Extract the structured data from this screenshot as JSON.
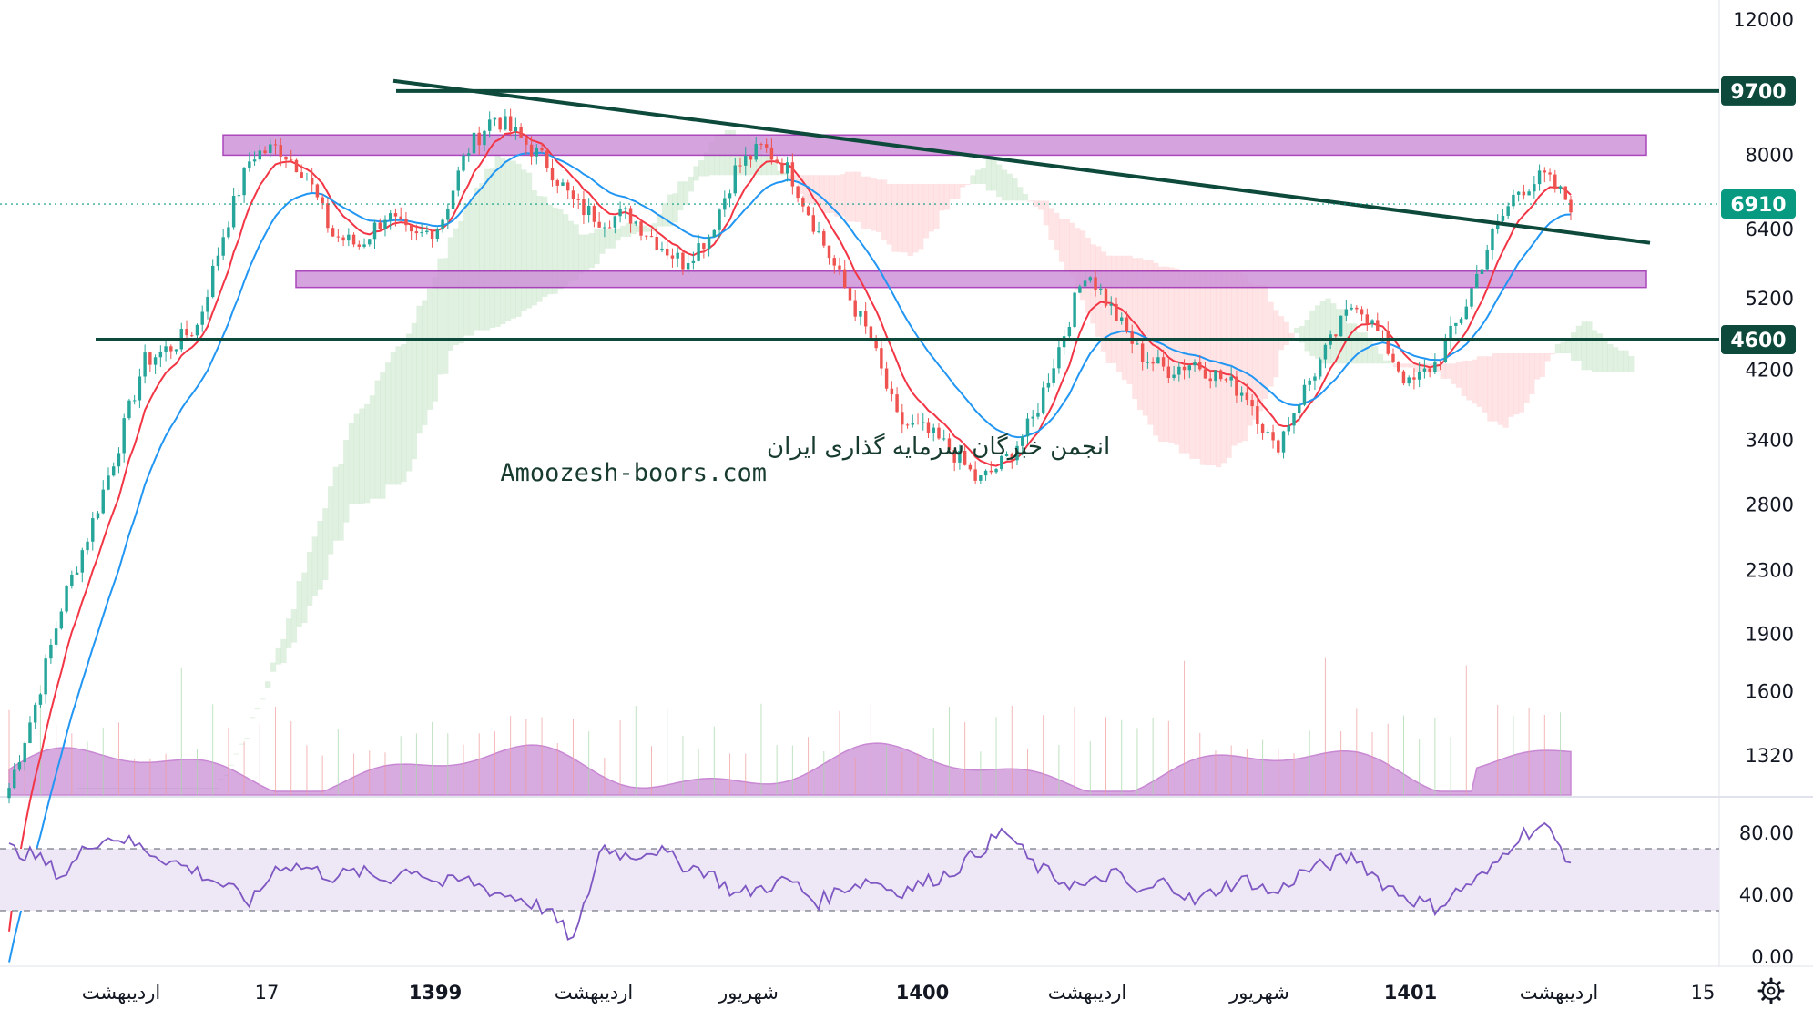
{
  "colors": {
    "price_up": "#26a69a",
    "price_down": "#ef5350",
    "ema_fast": "#f23645",
    "ema_slow": "#2196f3",
    "trend_line": "#0d4a3b",
    "zone_fill": "#ce93d8",
    "zone_stroke": "#9c27b0",
    "volume_profile": "#ba68c8",
    "rsi_line": "#7e57c2",
    "rsi_band": "#ede7f6",
    "last_price_badge": "#089981",
    "level_badge": "#0d4a3b",
    "cloud_green": "#c8e6c9",
    "cloud_red": "#ffcdd2"
  },
  "watermark": {
    "line1": "انجمن خبرگان سرمایه گذاری ایران",
    "line2": "Amoozesh-boors.com"
  },
  "icons": {
    "settings": "gear-icon"
  },
  "chart_data": {
    "type": "candlestick",
    "scale": "log",
    "price_axis_ticks": [
      "12000",
      "8000",
      "6400",
      "5200",
      "4200",
      "3400",
      "2800",
      "2300",
      "1900",
      "1600",
      "1320"
    ],
    "rsi_axis_ticks": [
      "80.00",
      "40.00",
      "0.00"
    ],
    "time_axis_labels": [
      "اردیبهشت",
      "17",
      "1399",
      "اردیبهشت",
      "شهریور",
      "1400",
      "اردیبهشت",
      "شهریور",
      "1401",
      "اردیبهشت",
      "15"
    ],
    "last_price": {
      "label": "6910",
      "value": 6910
    },
    "levels": [
      {
        "label": "9700",
        "value": 9700
      },
      {
        "label": "4600",
        "value": 4600
      }
    ],
    "zones": [
      {
        "name": "resistance",
        "low": 8000,
        "high": 8500
      },
      {
        "name": "support",
        "low": 5380,
        "high": 5650
      }
    ],
    "trendline": {
      "from": {
        "t": 0.2,
        "price": 10000
      },
      "to": {
        "t": 0.955,
        "price": 6150
      }
    },
    "price_series": [
      1200,
      1550,
      2100,
      2600,
      3300,
      4300,
      4500,
      4800,
      6400,
      8000,
      8200,
      7600,
      6300,
      6100,
      6700,
      6200,
      6500,
      8100,
      9000,
      8400,
      7800,
      6900,
      6600,
      6700,
      6200,
      5800,
      6300,
      7700,
      8200,
      7600,
      6400,
      5400,
      4600,
      3600,
      3500,
      3300,
      3000,
      3200,
      3600,
      4500,
      5700,
      5000,
      4400,
      4200,
      4300,
      4100,
      3900,
      3300,
      3900,
      4500,
      5200,
      4600,
      4000,
      4300,
      5000,
      6200,
      7200,
      7500,
      6910
    ],
    "rsi_series": [
      70,
      65,
      52,
      74,
      78,
      70,
      62,
      55,
      46,
      35,
      60,
      58,
      52,
      55,
      50,
      58,
      47,
      50,
      42,
      38,
      30,
      10,
      72,
      65,
      70,
      60,
      55,
      40,
      45,
      50,
      35,
      45,
      50,
      42,
      48,
      55,
      68,
      82,
      60,
      50,
      45,
      55,
      40,
      50,
      35,
      45,
      50,
      40,
      55,
      60,
      65,
      48,
      38,
      32,
      45,
      55,
      78,
      85,
      62
    ],
    "rsi_levels": [
      70,
      30
    ]
  }
}
